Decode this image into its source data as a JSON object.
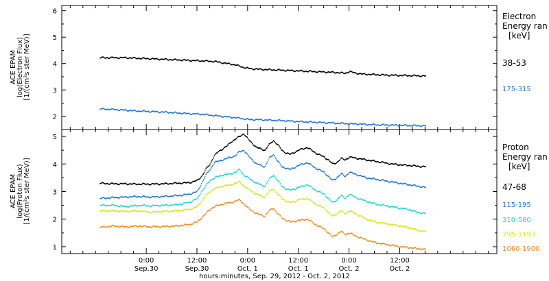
{
  "chart_data": [
    {
      "type": "scatter",
      "panel": "electron",
      "ylabel_lines": [
        "ACE EPAM",
        "log(Electron Flux)",
        "[1/(cm²s ster MeV)]"
      ],
      "ylim": [
        1.5,
        6.2
      ],
      "yticks": [
        2,
        3,
        4,
        5,
        6
      ],
      "legend_title": [
        "Electron",
        "Energy ran"
      ],
      "legend_unit": "[keV]",
      "series": [
        {
          "name": "38-53",
          "color": "#000000",
          "x": [
            -11,
            -8,
            -5,
            -2,
            1,
            4,
            7,
            10,
            13,
            16,
            19,
            20,
            21,
            22,
            23,
            24,
            25,
            27,
            30,
            33,
            36,
            39,
            42,
            45,
            47,
            48,
            49,
            51,
            54,
            57,
            60,
            63,
            66
          ],
          "y": [
            4.22,
            4.22,
            4.22,
            4.2,
            4.18,
            4.16,
            4.14,
            4.12,
            4.1,
            4.08,
            4.0,
            3.98,
            3.95,
            3.9,
            3.85,
            3.82,
            3.8,
            3.78,
            3.76,
            3.74,
            3.72,
            3.7,
            3.68,
            3.66,
            3.63,
            3.7,
            3.65,
            3.6,
            3.58,
            3.56,
            3.55,
            3.54,
            3.53
          ]
        },
        {
          "name": "175-315",
          "color": "#1E78D7",
          "x": [
            -11,
            -8,
            -5,
            -2,
            1,
            4,
            7,
            10,
            13,
            16,
            19,
            22,
            24,
            27,
            30,
            33,
            36,
            39,
            42,
            45,
            48,
            51,
            54,
            57,
            60,
            63,
            66
          ],
          "y": [
            2.28,
            2.26,
            2.23,
            2.2,
            2.18,
            2.16,
            2.13,
            2.1,
            2.08,
            2.03,
            1.98,
            1.93,
            1.88,
            1.87,
            1.85,
            1.83,
            1.8,
            1.78,
            1.76,
            1.74,
            1.72,
            1.7,
            1.68,
            1.67,
            1.66,
            1.65,
            1.64
          ]
        }
      ]
    },
    {
      "type": "scatter",
      "panel": "proton",
      "ylabel_lines": [
        "ACE EPAM",
        "log(Proton Flux)",
        "[1/(cm²s ster MeV)]"
      ],
      "ylim": [
        0.75,
        5.25
      ],
      "yticks": [
        1,
        2,
        3,
        4,
        5
      ],
      "legend_title": [
        "Proton",
        "Energy ran"
      ],
      "legend_unit": "[keV]",
      "series": [
        {
          "name": "47-68",
          "color": "#000000",
          "x": [
            -11,
            -8,
            -5,
            -2,
            1,
            4,
            7,
            10,
            12,
            13,
            14,
            15,
            16,
            17,
            18,
            19,
            20,
            21,
            22,
            23,
            24,
            25,
            26,
            27,
            28,
            29,
            30,
            31,
            32,
            33,
            34,
            36,
            38,
            40,
            42,
            43,
            44,
            45,
            46,
            47,
            48,
            50,
            52,
            54,
            56,
            58,
            60,
            62,
            64,
            66
          ],
          "y": [
            3.3,
            3.28,
            3.28,
            3.27,
            3.27,
            3.28,
            3.3,
            3.32,
            3.4,
            3.55,
            3.8,
            4.0,
            4.3,
            4.45,
            4.55,
            4.65,
            4.8,
            4.9,
            5.0,
            5.1,
            4.9,
            4.75,
            4.6,
            4.55,
            4.5,
            4.7,
            4.85,
            4.7,
            4.5,
            4.4,
            4.35,
            4.5,
            4.6,
            4.4,
            4.25,
            4.15,
            4.0,
            4.05,
            4.2,
            4.15,
            4.25,
            4.2,
            4.15,
            4.1,
            4.05,
            4.0,
            3.97,
            3.95,
            3.92,
            3.9
          ]
        },
        {
          "name": "115-195",
          "color": "#1E78D7",
          "x": [
            -11,
            -8,
            -5,
            -2,
            1,
            4,
            7,
            10,
            12,
            13,
            14,
            15,
            16,
            17,
            18,
            19,
            20,
            21,
            22,
            23,
            24,
            25,
            26,
            27,
            28,
            29,
            30,
            31,
            32,
            33,
            34,
            36,
            38,
            40,
            42,
            43,
            44,
            45,
            46,
            47,
            48,
            50,
            52,
            54,
            56,
            58,
            60,
            62,
            64,
            66
          ],
          "y": [
            2.75,
            2.78,
            2.8,
            2.82,
            2.8,
            2.82,
            2.85,
            2.9,
            3.0,
            3.3,
            3.6,
            3.8,
            4.05,
            4.1,
            4.15,
            4.2,
            4.25,
            4.3,
            4.45,
            4.5,
            4.3,
            4.15,
            4.0,
            3.95,
            3.9,
            4.2,
            4.35,
            4.1,
            3.9,
            3.85,
            3.8,
            3.95,
            4.05,
            3.85,
            3.7,
            3.55,
            3.4,
            3.5,
            3.65,
            3.55,
            3.7,
            3.6,
            3.5,
            3.45,
            3.4,
            3.35,
            3.3,
            3.25,
            3.2,
            3.15
          ]
        },
        {
          "name": "310-580",
          "color": "#22D4D4",
          "x": [
            -11,
            -8,
            -5,
            -2,
            1,
            4,
            7,
            10,
            12,
            13,
            14,
            15,
            16,
            17,
            18,
            19,
            20,
            21,
            22,
            23,
            24,
            25,
            26,
            27,
            28,
            29,
            30,
            31,
            32,
            33,
            34,
            36,
            38,
            40,
            42,
            43,
            44,
            45,
            46,
            47,
            48,
            50,
            52,
            54,
            56,
            58,
            60,
            62,
            64,
            66
          ],
          "y": [
            2.5,
            2.5,
            2.45,
            2.5,
            2.48,
            2.5,
            2.52,
            2.6,
            2.75,
            3.0,
            3.2,
            3.4,
            3.5,
            3.55,
            3.6,
            3.62,
            3.65,
            3.7,
            3.8,
            3.6,
            3.5,
            3.4,
            3.3,
            3.25,
            3.2,
            3.45,
            3.6,
            3.4,
            3.2,
            3.1,
            3.05,
            3.15,
            3.25,
            3.05,
            2.9,
            2.75,
            2.6,
            2.7,
            2.85,
            2.75,
            2.9,
            2.75,
            2.65,
            2.55,
            2.5,
            2.45,
            2.4,
            2.35,
            2.25,
            2.2
          ]
        },
        {
          "name": "795-1193",
          "color": "#D4E61E",
          "x": [
            -11,
            -8,
            -5,
            -2,
            1,
            4,
            7,
            10,
            12,
            13,
            14,
            15,
            16,
            17,
            18,
            19,
            20,
            21,
            22,
            23,
            24,
            25,
            26,
            27,
            28,
            29,
            30,
            31,
            32,
            33,
            34,
            36,
            38,
            40,
            42,
            43,
            44,
            45,
            46,
            47,
            48,
            50,
            52,
            54,
            56,
            58,
            60,
            62,
            64,
            66
          ],
          "y": [
            2.3,
            2.3,
            2.28,
            2.3,
            2.25,
            2.28,
            2.3,
            2.35,
            2.45,
            2.65,
            2.85,
            3.0,
            3.1,
            3.15,
            3.2,
            3.22,
            3.25,
            3.3,
            3.35,
            3.2,
            3.1,
            3.0,
            2.9,
            2.85,
            2.8,
            3.0,
            3.1,
            2.9,
            2.75,
            2.65,
            2.6,
            2.7,
            2.75,
            2.55,
            2.4,
            2.25,
            2.1,
            2.2,
            2.3,
            2.2,
            2.3,
            2.15,
            2.0,
            1.9,
            1.85,
            1.8,
            1.75,
            1.7,
            1.6,
            1.55
          ]
        },
        {
          "name": "1060-1900",
          "color": "#F08C1E",
          "x": [
            -11,
            -8,
            -5,
            -2,
            1,
            4,
            7,
            10,
            12,
            13,
            14,
            15,
            16,
            17,
            18,
            19,
            20,
            21,
            22,
            23,
            24,
            25,
            26,
            27,
            28,
            29,
            30,
            31,
            32,
            33,
            34,
            36,
            38,
            40,
            42,
            43,
            44,
            45,
            46,
            47,
            48,
            50,
            52,
            54,
            56,
            58,
            60,
            62,
            64,
            66
          ],
          "y": [
            1.7,
            1.75,
            1.72,
            1.75,
            1.72,
            1.73,
            1.75,
            1.8,
            1.9,
            2.05,
            2.2,
            2.35,
            2.45,
            2.5,
            2.55,
            2.58,
            2.6,
            2.65,
            2.7,
            2.55,
            2.4,
            2.3,
            2.2,
            2.15,
            2.1,
            2.3,
            2.4,
            2.2,
            2.05,
            1.95,
            1.9,
            1.95,
            2.0,
            1.8,
            1.65,
            1.5,
            1.35,
            1.45,
            1.55,
            1.45,
            1.5,
            1.35,
            1.25,
            1.15,
            1.1,
            1.05,
            1.0,
            0.97,
            0.93,
            0.9
          ]
        }
      ]
    }
  ],
  "x_axis": {
    "unit": "hours",
    "xlim": [
      -20,
      83
    ],
    "major_ticks": [
      {
        "x": 0,
        "top": "0:00",
        "bottom": "Sep.30"
      },
      {
        "x": 12,
        "top": "12:00",
        "bottom": "Sep.30"
      },
      {
        "x": 24,
        "top": "0:00",
        "bottom": "Oct. 1"
      },
      {
        "x": 36,
        "top": "12:00",
        "bottom": "Oct. 1"
      },
      {
        "x": 48,
        "top": "0:00",
        "bottom": "Oct. 2"
      },
      {
        "x": 60,
        "top": "12:00",
        "bottom": "Oct. 2"
      }
    ],
    "minor_ticks": [
      -18,
      -15,
      -12,
      -9,
      -6,
      -3,
      3,
      6,
      9,
      15,
      18,
      21,
      27,
      30,
      33,
      39,
      42,
      45,
      51,
      54,
      57,
      63,
      66,
      69,
      72,
      75,
      78,
      81
    ],
    "label": "hours:minutes, Sep. 29, 2012 - Oct. 2, 2012"
  }
}
